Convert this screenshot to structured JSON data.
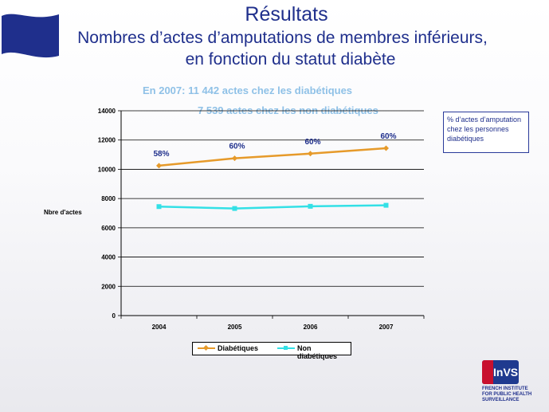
{
  "slide": {
    "title": "Résultats",
    "title_line2": "Nombres d’actes d’amputations de membres inférieurs,",
    "title_line3": "en fonction du statut diabète",
    "subtitle_1": "En 2007: 11 442 actes chez les diabétiques",
    "subtitle_2": "7 539 actes chez les non diabétiques",
    "note": "% d’actes d’amputation chez les personnes diabétiques",
    "logo_word": "InVS",
    "logo_text_1": "FRENCH INSTITUTE",
    "logo_text_2": "FOR PUBLIC HEALTH",
    "logo_text_3": "SURVEILLANCE",
    "colors": {
      "title": "#1f2f8c",
      "subtitle": "#8fc1e7",
      "flag": "#1f2f8c"
    }
  },
  "chart_data": {
    "type": "line",
    "categories": [
      "2004",
      "2005",
      "2006",
      "2007"
    ],
    "series": [
      {
        "name": "Diabétiques",
        "values": [
          10250,
          10750,
          11070,
          11442
        ],
        "color": "#e69a2a",
        "marker": "diamond",
        "labels": [
          "58%",
          "60%",
          "60%",
          "60%"
        ]
      },
      {
        "name": "Non diabétiques",
        "values": [
          7450,
          7320,
          7470,
          7539
        ],
        "color": "#33e0e6",
        "marker": "square"
      }
    ],
    "ylabel": "Nbre d'actes",
    "ylim": [
      0,
      14000
    ],
    "yticks": [
      0,
      2000,
      4000,
      6000,
      8000,
      10000,
      12000,
      14000
    ],
    "grid": true,
    "legend": "bottom"
  }
}
